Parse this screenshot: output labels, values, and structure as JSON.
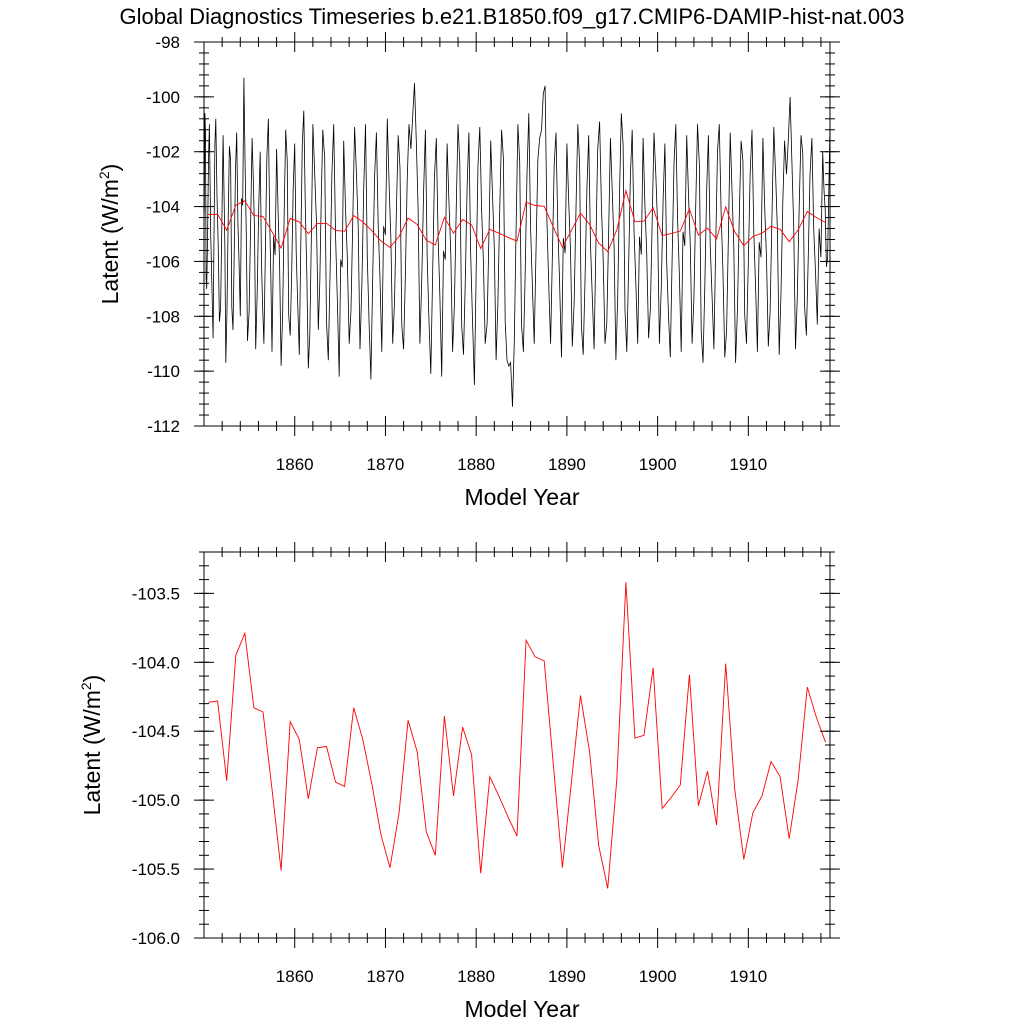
{
  "title": "Global Diagnostics Timeseries b.e21.B1850.f09_g17.CMIP6-DAMIP-hist-nat.003",
  "chart_data": [
    {
      "type": "line",
      "xlabel": "Model Year",
      "ylabel": "Latent (W/m",
      "ylabel_sup": "2",
      "ylabel_close": ")",
      "xlim": [
        1850,
        1919
      ],
      "ylim": [
        -112,
        -98
      ],
      "xticks": [
        1860,
        1870,
        1880,
        1890,
        1900,
        1910
      ],
      "yticks": [
        -112,
        -110,
        -108,
        -106,
        -104,
        -102,
        -100,
        -98
      ],
      "ytick_labels": [
        "-112",
        "-110",
        "-108",
        "-106",
        "-104",
        "-102",
        "-100",
        "-98"
      ],
      "series": [
        {
          "color": "#000000",
          "kind": "monthly",
          "mean": -105.0,
          "amplitude_range": [
            -111.3,
            -99.3
          ],
          "note_points": [
            [
              1850.0,
              -104.3
            ],
            [
              1850.1,
              -100.6
            ],
            [
              1850.3,
              -107.0
            ],
            [
              1850.6,
              -101.0
            ],
            [
              1851.0,
              -108.8
            ],
            [
              1851.3,
              -100.8
            ],
            [
              1851.7,
              -108.2
            ],
            [
              1852.1,
              -101.4
            ],
            [
              1852.4,
              -109.7
            ],
            [
              1852.8,
              -101.8
            ],
            [
              1853.2,
              -108.5
            ],
            [
              1853.6,
              -101.3
            ],
            [
              1854.0,
              -108.0
            ],
            [
              1854.4,
              -99.3
            ],
            [
              1854.8,
              -108.9
            ],
            [
              1855.3,
              -101.5
            ],
            [
              1855.7,
              -109.2
            ],
            [
              1856.2,
              -102.0
            ],
            [
              1856.6,
              -109.0
            ],
            [
              1857.1,
              -100.8
            ],
            [
              1857.5,
              -109.3
            ],
            [
              1858.0,
              -101.9
            ],
            [
              1858.5,
              -109.8
            ],
            [
              1859.0,
              -101.2
            ],
            [
              1859.5,
              -108.7
            ],
            [
              1860.0,
              -101.7
            ],
            [
              1860.5,
              -109.4
            ],
            [
              1861.0,
              -100.5
            ],
            [
              1861.5,
              -109.9
            ],
            [
              1862.0,
              -101.0
            ],
            [
              1862.6,
              -108.5
            ],
            [
              1863.1,
              -101.2
            ],
            [
              1863.7,
              -109.6
            ],
            [
              1864.3,
              -101.0
            ],
            [
              1864.9,
              -110.2
            ],
            [
              1865.4,
              -101.6
            ],
            [
              1866.0,
              -109.0
            ],
            [
              1866.6,
              -101.1
            ],
            [
              1867.2,
              -109.2
            ],
            [
              1867.8,
              -101.0
            ],
            [
              1868.4,
              -110.3
            ],
            [
              1869.0,
              -101.3
            ],
            [
              1869.6,
              -109.3
            ],
            [
              1870.2,
              -100.8
            ],
            [
              1870.8,
              -109.0
            ],
            [
              1871.4,
              -101.4
            ],
            [
              1872.0,
              -109.2
            ],
            [
              1872.6,
              -101.0
            ],
            [
              1873.2,
              -99.5
            ],
            [
              1873.8,
              -109.0
            ],
            [
              1874.4,
              -101.2
            ],
            [
              1875.0,
              -110.1
            ],
            [
              1875.6,
              -101.5
            ],
            [
              1876.2,
              -110.2
            ],
            [
              1876.8,
              -101.7
            ],
            [
              1877.4,
              -109.3
            ],
            [
              1878.0,
              -101.0
            ],
            [
              1878.6,
              -109.4
            ],
            [
              1879.2,
              -101.3
            ],
            [
              1879.8,
              -110.5
            ],
            [
              1880.4,
              -101.1
            ],
            [
              1881.0,
              -109.0
            ],
            [
              1881.6,
              -101.6
            ],
            [
              1882.2,
              -109.6
            ],
            [
              1882.8,
              -101.2
            ],
            [
              1883.4,
              -109.6
            ],
            [
              1884.0,
              -111.3
            ],
            [
              1884.6,
              -101.0
            ],
            [
              1885.2,
              -109.3
            ],
            [
              1885.8,
              -100.6
            ],
            [
              1886.4,
              -109.0
            ],
            [
              1887.0,
              -101.5
            ],
            [
              1887.6,
              -99.6
            ],
            [
              1888.2,
              -109.0
            ],
            [
              1888.8,
              -101.3
            ],
            [
              1889.4,
              -109.5
            ],
            [
              1890.0,
              -101.7
            ],
            [
              1890.6,
              -109.1
            ],
            [
              1891.2,
              -101.0
            ],
            [
              1891.8,
              -109.4
            ],
            [
              1892.4,
              -101.4
            ],
            [
              1893.0,
              -109.2
            ],
            [
              1893.6,
              -100.9
            ],
            [
              1894.2,
              -109.0
            ],
            [
              1894.8,
              -101.5
            ],
            [
              1895.4,
              -109.6
            ],
            [
              1896.0,
              -100.6
            ],
            [
              1896.6,
              -109.3
            ],
            [
              1897.2,
              -101.2
            ],
            [
              1897.8,
              -109.0
            ],
            [
              1898.4,
              -101.5
            ],
            [
              1899.0,
              -108.8
            ],
            [
              1899.6,
              -101.3
            ],
            [
              1900.2,
              -109.0
            ],
            [
              1900.8,
              -101.7
            ],
            [
              1901.4,
              -109.5
            ],
            [
              1902.0,
              -101.0
            ],
            [
              1902.6,
              -109.3
            ],
            [
              1903.2,
              -101.4
            ],
            [
              1903.8,
              -109.0
            ],
            [
              1904.4,
              -101.0
            ],
            [
              1905.0,
              -109.7
            ],
            [
              1905.6,
              -101.4
            ],
            [
              1906.2,
              -109.2
            ],
            [
              1906.8,
              -101.0
            ],
            [
              1907.4,
              -109.5
            ],
            [
              1908.0,
              -101.3
            ],
            [
              1908.6,
              -109.7
            ],
            [
              1909.2,
              -101.6
            ],
            [
              1909.8,
              -109.0
            ],
            [
              1910.4,
              -101.2
            ],
            [
              1911.0,
              -109.3
            ],
            [
              1911.6,
              -101.5
            ],
            [
              1912.2,
              -109.1
            ],
            [
              1912.8,
              -101.1
            ],
            [
              1913.4,
              -109.4
            ],
            [
              1914.0,
              -101.6
            ],
            [
              1914.6,
              -100.0
            ],
            [
              1915.2,
              -109.2
            ],
            [
              1915.8,
              -101.4
            ],
            [
              1916.4,
              -108.7
            ],
            [
              1917.0,
              -101.5
            ],
            [
              1917.6,
              -108.3
            ],
            [
              1918.2,
              -102.0
            ],
            [
              1918.6,
              -106.2
            ],
            [
              1919.0,
              -101.0
            ]
          ]
        },
        {
          "color": "#ff0000",
          "kind": "annual",
          "ref": "annual_means"
        }
      ]
    },
    {
      "type": "line",
      "xlabel": "Model Year",
      "ylabel": "Latent (W/m",
      "ylabel_sup": "2",
      "ylabel_close": ")",
      "xlim": [
        1850,
        1919
      ],
      "ylim": [
        -106.0,
        -103.2
      ],
      "xticks": [
        1860,
        1870,
        1880,
        1890,
        1900,
        1910
      ],
      "yticks": [
        -106.0,
        -105.5,
        -105.0,
        -104.5,
        -104.0,
        -103.5
      ],
      "ytick_labels": [
        "-106.0",
        "-105.5",
        "-105.0",
        "-104.5",
        "-104.0",
        "-103.5"
      ],
      "series": [
        {
          "color": "#ff0000",
          "kind": "annual",
          "ref": "annual_means"
        }
      ]
    }
  ],
  "annual_means": {
    "x": [
      1850.5,
      1851.5,
      1852.5,
      1853.5,
      1854.5,
      1855.5,
      1856.5,
      1857.5,
      1858.5,
      1859.5,
      1860.5,
      1861.5,
      1862.5,
      1863.5,
      1864.5,
      1865.5,
      1866.5,
      1867.5,
      1868.5,
      1869.5,
      1870.5,
      1871.5,
      1872.5,
      1873.5,
      1874.5,
      1875.5,
      1876.5,
      1877.5,
      1878.5,
      1879.5,
      1880.5,
      1881.5,
      1882.5,
      1883.5,
      1884.5,
      1885.5,
      1886.5,
      1887.5,
      1888.5,
      1889.5,
      1890.5,
      1891.5,
      1892.5,
      1893.5,
      1894.5,
      1895.5,
      1896.5,
      1897.5,
      1898.5,
      1899.5,
      1900.5,
      1901.5,
      1902.5,
      1903.5,
      1904.5,
      1905.5,
      1906.5,
      1907.5,
      1908.5,
      1909.5,
      1910.5,
      1911.5,
      1912.5,
      1913.5,
      1914.5,
      1915.5,
      1916.5,
      1917.5,
      1918.5
    ],
    "y": [
      -104.29,
      -104.28,
      -104.86,
      -103.95,
      -103.79,
      -104.33,
      -104.36,
      -104.92,
      -105.51,
      -104.43,
      -104.56,
      -104.99,
      -104.62,
      -104.61,
      -104.87,
      -104.9,
      -104.33,
      -104.56,
      -104.88,
      -105.25,
      -105.49,
      -105.09,
      -104.42,
      -104.65,
      -105.23,
      -105.4,
      -104.39,
      -104.97,
      -104.47,
      -104.67,
      -105.53,
      -104.83,
      -104.97,
      -105.12,
      -105.26,
      -103.84,
      -103.96,
      -103.99,
      -104.74,
      -105.49,
      -104.87,
      -104.24,
      -104.65,
      -105.33,
      -105.64,
      -104.85,
      -103.42,
      -104.55,
      -104.53,
      -104.04,
      -105.06,
      -104.98,
      -104.89,
      -104.09,
      -105.04,
      -104.79,
      -105.18,
      -104.01,
      -104.92,
      -105.43,
      -105.09,
      -104.97,
      -104.72,
      -104.83,
      -105.28,
      -104.85,
      -104.18,
      -104.4,
      -104.58
    ]
  }
}
